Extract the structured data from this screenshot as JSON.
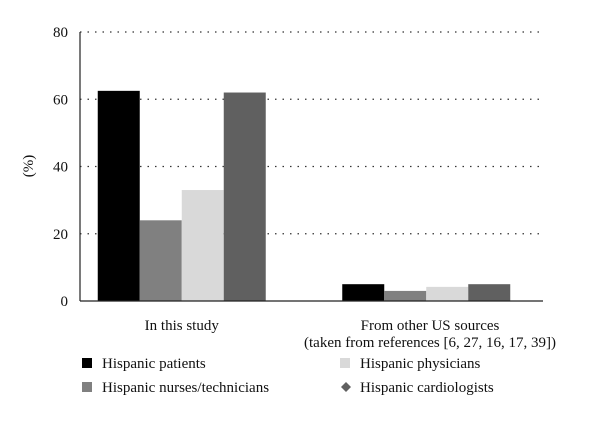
{
  "chart_data": {
    "type": "bar",
    "title": "",
    "xlabel": "",
    "ylabel": "(%)",
    "ylim": [
      0,
      80
    ],
    "yticks": [
      0,
      20,
      40,
      60,
      80
    ],
    "grid": "horizontal-dotted",
    "legend_position": "bottom",
    "categories": [
      {
        "lines": [
          "In this study"
        ]
      },
      {
        "lines": [
          "From other US sources",
          "(taken from references [6, 27, 16, 17, 39])"
        ]
      }
    ],
    "series": [
      {
        "name": "Hispanic patients",
        "color": "#000000",
        "marker": "square",
        "values": [
          62.5,
          5
        ]
      },
      {
        "name": "Hispanic nurses/technicians",
        "color": "#808080",
        "marker": "square",
        "values": [
          24,
          3
        ]
      },
      {
        "name": "Hispanic physicians",
        "color": "#d9d9d9",
        "marker": "square",
        "values": [
          33,
          4.2
        ]
      },
      {
        "name": "Hispanic cardiologists",
        "color": "#606060",
        "marker": "diamond",
        "values": [
          62,
          5
        ]
      }
    ]
  }
}
